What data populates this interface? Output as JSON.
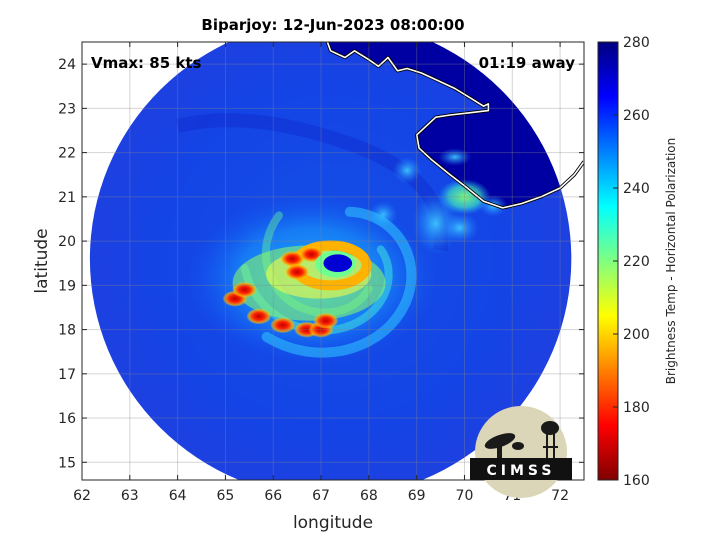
{
  "chart_data": {
    "type": "heatmap",
    "title": "Biparjoy: 12-Jun-2023 08:00:00",
    "xlabel": "longitude",
    "ylabel": "latitude",
    "xlim": [
      62,
      72.5
    ],
    "ylim": [
      14.6,
      24.5
    ],
    "x_ticks": [
      62,
      63,
      64,
      65,
      66,
      67,
      68,
      69,
      70,
      71,
      72
    ],
    "y_ticks": [
      15,
      16,
      17,
      18,
      19,
      20,
      21,
      22,
      23,
      24
    ],
    "grid": true,
    "annotations": {
      "vmax": "Vmax: 85 kts",
      "time_offset": "01:19 away"
    },
    "colorbar": {
      "label": "Brightness Temp - Horizontal Polarization",
      "range": [
        160,
        280
      ],
      "ticks": [
        160,
        180,
        200,
        220,
        240,
        260,
        280
      ],
      "colormap": [
        "#800000",
        "#ff0000",
        "#ff8000",
        "#ffff00",
        "#80ff80",
        "#00ffff",
        "#0080ff",
        "#0000ff",
        "#000080"
      ]
    },
    "swath": {
      "center_lon": 67.2,
      "center_lat": 19.6,
      "radius_deg": 5.3,
      "background_tb": 262
    },
    "storm": {
      "eye": {
        "lon": 67.3,
        "lat": 19.5,
        "tb": 262
      },
      "eyewall_tb": 196,
      "cold_cells": [
        {
          "lon": 65.2,
          "lat": 18.7,
          "tb": 182
        },
        {
          "lon": 65.7,
          "lat": 18.3,
          "tb": 175
        },
        {
          "lon": 66.2,
          "lat": 18.1,
          "tb": 178
        },
        {
          "lon": 66.7,
          "lat": 18.0,
          "tb": 186
        },
        {
          "lon": 67.0,
          "lat": 18.0,
          "tb": 190
        },
        {
          "lon": 66.4,
          "lat": 19.6,
          "tb": 188
        },
        {
          "lon": 66.8,
          "lat": 19.7,
          "tb": 186
        },
        {
          "lon": 66.5,
          "lat": 19.3,
          "tb": 190
        },
        {
          "lon": 65.4,
          "lat": 18.9,
          "tb": 190
        },
        {
          "lon": 67.1,
          "lat": 18.2,
          "tb": 198
        }
      ]
    },
    "land_tb": 272
  },
  "logo": {
    "text": "CIMSS"
  }
}
